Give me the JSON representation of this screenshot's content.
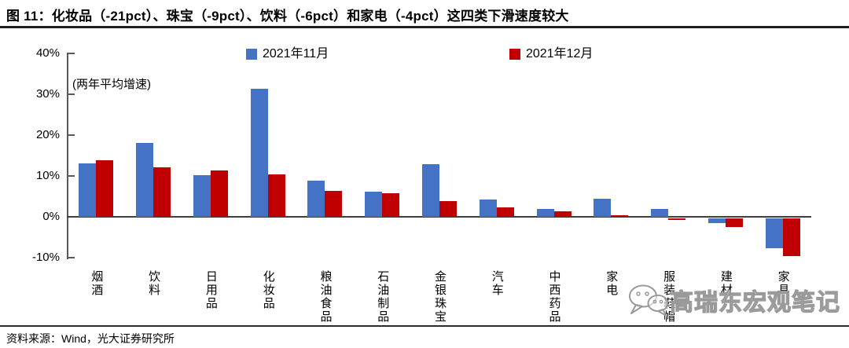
{
  "header": {
    "title": "图 11：化妆品（-21pct）、珠宝（-9pct）、饮料（-6pct）和家电（-4pct）这四类下滑速度较大"
  },
  "chart_data": {
    "type": "bar",
    "title": "图 11：化妆品（-21pct）、珠宝（-9pct）、饮料（-6pct）和家电（-4pct）这四类下滑速度较大",
    "annotation": "(两年平均增速)",
    "categories": [
      "烟酒",
      "饮料",
      "日用品",
      "化妆品",
      "粮油食品",
      "石油制品",
      "金银珠宝",
      "汽车",
      "中西药品",
      "家电",
      "服装鞋帽",
      "建材",
      "家具"
    ],
    "series": [
      {
        "name": "2021年11月",
        "color": "#4472C4",
        "values": [
          13.0,
          18.0,
          10.2,
          31.4,
          8.9,
          6.2,
          12.9,
          4.3,
          2.0,
          4.4,
          2.0,
          -1.2,
          -7.4
        ]
      },
      {
        "name": "2021年12月",
        "color": "#C00000",
        "values": [
          13.9,
          12.2,
          11.4,
          10.4,
          6.4,
          5.8,
          3.8,
          2.4,
          1.4,
          0.3,
          -0.2,
          -2.2,
          -9.2
        ]
      }
    ],
    "y_ticks": [
      {
        "label": "40%",
        "value": 40
      },
      {
        "label": "30%",
        "value": 30
      },
      {
        "label": "20%",
        "value": 20
      },
      {
        "label": "10%",
        "value": 10
      },
      {
        "label": "0%",
        "value": 0
      },
      {
        "label": "-10%",
        "value": -10
      }
    ],
    "ylim": [
      -10,
      40
    ],
    "xlabel": "",
    "ylabel": "",
    "grid": false,
    "legend_position": "top"
  },
  "watermark": {
    "icon": "wechat-icon",
    "text": "高瑞东宏观笔记"
  },
  "footer": {
    "source": "资料来源：Wind，光大证券研究所"
  }
}
